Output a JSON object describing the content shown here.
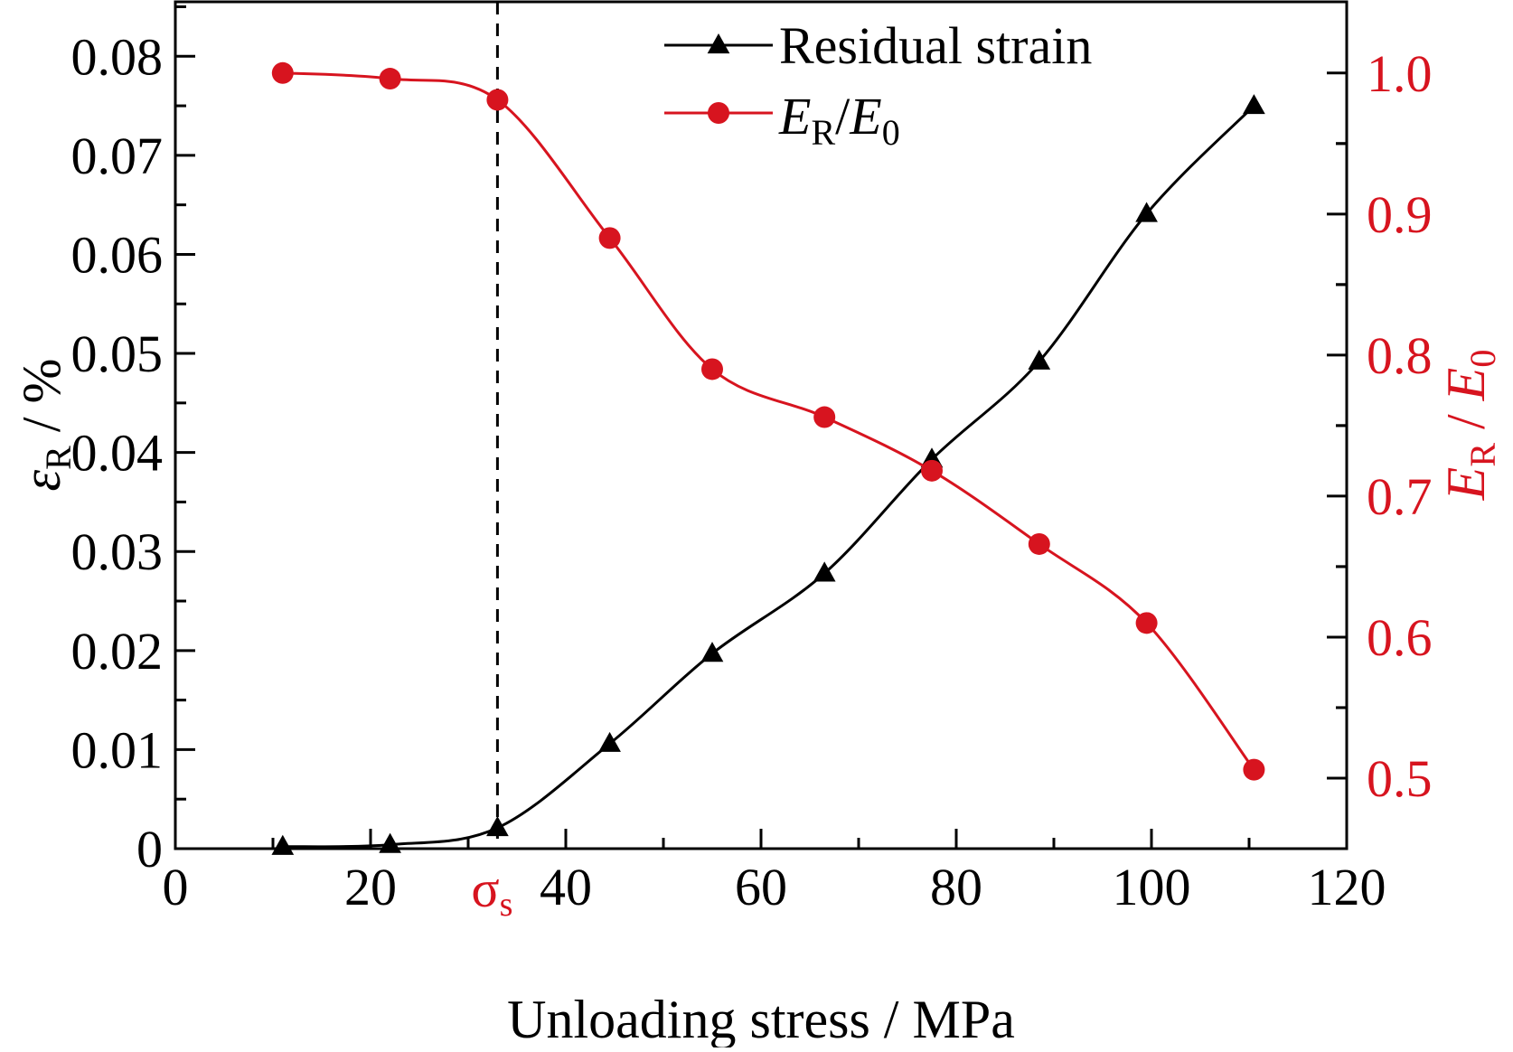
{
  "chart_data": {
    "type": "line",
    "xlabel": "Unloading stress / MPa",
    "x_ticks": [
      "0",
      "20",
      "40",
      "60",
      "80",
      "100",
      "120"
    ],
    "x_ticks_values": [
      0,
      20,
      40,
      60,
      80,
      100,
      120
    ],
    "xlim": [
      0,
      120
    ],
    "marker_label": {
      "base": "σ",
      "sub": "s",
      "x": 33,
      "color": "#d7141f"
    },
    "left_axis": {
      "label_symbol": "ε",
      "label_sub": "R",
      "label_rest": " / %",
      "ylim": [
        0,
        0.0855
      ],
      "ticks": [
        "0",
        "0.01",
        "0.02",
        "0.03",
        "0.04",
        "0.05",
        "0.06",
        "0.07",
        "0.08"
      ],
      "tick_values": [
        0,
        0.01,
        0.02,
        0.03,
        0.04,
        0.05,
        0.06,
        0.07,
        0.08
      ],
      "color": "#000000"
    },
    "right_axis": {
      "label_parts": [
        "E",
        "R",
        " / ",
        "E",
        "0"
      ],
      "ylim": [
        0.45,
        1.0505
      ],
      "ticks": [
        "0.5",
        "0.6",
        "0.7",
        "0.8",
        "0.9",
        "1.0"
      ],
      "tick_values": [
        0.5,
        0.6,
        0.7,
        0.8,
        0.9,
        1.0
      ],
      "color": "#d7141f"
    },
    "series": [
      {
        "name": "Residual strain",
        "axis": "left",
        "marker": "triangle",
        "color": "#000000",
        "x": [
          11,
          22,
          33,
          44.5,
          55,
          66.5,
          77.5,
          88.5,
          99.5,
          110.5
        ],
        "y": [
          0.0002,
          0.0004,
          0.0021,
          0.0106,
          0.0197,
          0.0278,
          0.0393,
          0.0492,
          0.0641,
          0.075
        ]
      },
      {
        "name_parts": [
          "E",
          "R",
          "/",
          "E",
          "0"
        ],
        "axis": "right",
        "marker": "circle",
        "color": "#d7141f",
        "x": [
          11,
          22,
          33,
          44.5,
          55,
          66.5,
          77.5,
          88.5,
          99.5,
          110.5
        ],
        "y": [
          1.0,
          0.996,
          0.981,
          0.883,
          0.79,
          0.756,
          0.718,
          0.666,
          0.61,
          0.506
        ]
      }
    ],
    "reference_line": {
      "x": 33,
      "style": "dashed"
    },
    "legend_position": "top-right"
  }
}
